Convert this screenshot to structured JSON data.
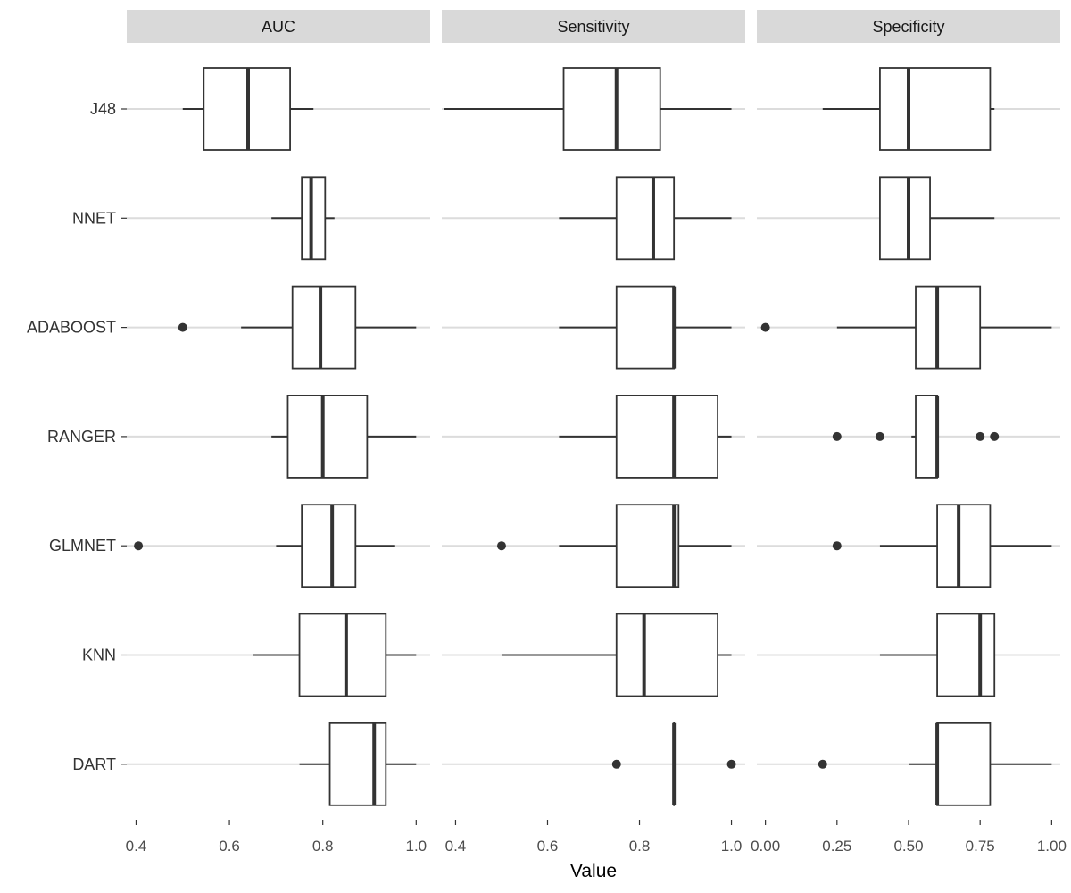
{
  "chart_data": {
    "type": "boxplot",
    "orientation": "horizontal",
    "xlabel": "Value",
    "ylabel": "",
    "colors": {
      "panel_bg": "#ffffff",
      "strip_bg": "#d9d9d9",
      "gridline": "#dcdcdc",
      "box_line": "#333333",
      "outlier": "#333333"
    },
    "models": [
      "J48",
      "NNET",
      "ADABOOST",
      "RANGER",
      "GLMNET",
      "KNN",
      "DART"
    ],
    "panels": [
      {
        "name": "AUC",
        "xlim": [
          0.38,
          1.03
        ],
        "ticks": [
          0.4,
          0.6,
          0.8,
          1.0
        ],
        "tick_labels": [
          "0.4",
          "0.6",
          "0.8",
          "1.0"
        ],
        "boxes": [
          {
            "model": "J48",
            "whisker_low": 0.5,
            "q1": 0.545,
            "median": 0.64,
            "q3": 0.73,
            "whisker_high": 0.78,
            "outliers": []
          },
          {
            "model": "NNET",
            "whisker_low": 0.69,
            "q1": 0.755,
            "median": 0.775,
            "q3": 0.805,
            "whisker_high": 0.825,
            "outliers": []
          },
          {
            "model": "ADABOOST",
            "whisker_low": 0.625,
            "q1": 0.735,
            "median": 0.795,
            "q3": 0.87,
            "whisker_high": 1.0,
            "outliers": [
              0.5
            ]
          },
          {
            "model": "RANGER",
            "whisker_low": 0.69,
            "q1": 0.725,
            "median": 0.8,
            "q3": 0.895,
            "whisker_high": 1.0,
            "outliers": []
          },
          {
            "model": "GLMNET",
            "whisker_low": 0.7,
            "q1": 0.755,
            "median": 0.82,
            "q3": 0.87,
            "whisker_high": 0.955,
            "outliers": [
              0.405
            ]
          },
          {
            "model": "KNN",
            "whisker_low": 0.65,
            "q1": 0.75,
            "median": 0.85,
            "q3": 0.935,
            "whisker_high": 1.0,
            "outliers": []
          },
          {
            "model": "DART",
            "whisker_low": 0.75,
            "q1": 0.815,
            "median": 0.91,
            "q3": 0.935,
            "whisker_high": 1.0,
            "outliers": []
          }
        ]
      },
      {
        "name": "Sensitivity",
        "xlim": [
          0.37,
          1.03
        ],
        "ticks": [
          0.4,
          0.6,
          0.8,
          1.0
        ],
        "tick_labels": [
          "0.4",
          "0.6",
          "0.8",
          "1.0"
        ],
        "boxes": [
          {
            "model": "J48",
            "whisker_low": 0.375,
            "q1": 0.635,
            "median": 0.75,
            "q3": 0.845,
            "whisker_high": 1.0,
            "outliers": []
          },
          {
            "model": "NNET",
            "whisker_low": 0.625,
            "q1": 0.75,
            "median": 0.83,
            "q3": 0.875,
            "whisker_high": 1.0,
            "outliers": []
          },
          {
            "model": "ADABOOST",
            "whisker_low": 0.625,
            "q1": 0.75,
            "median": 0.875,
            "q3": 0.875,
            "whisker_high": 1.0,
            "outliers": []
          },
          {
            "model": "RANGER",
            "whisker_low": 0.625,
            "q1": 0.75,
            "median": 0.875,
            "q3": 0.97,
            "whisker_high": 1.0,
            "outliers": []
          },
          {
            "model": "GLMNET",
            "whisker_low": 0.625,
            "q1": 0.75,
            "median": 0.875,
            "q3": 0.885,
            "whisker_high": 1.0,
            "outliers": [
              0.5
            ]
          },
          {
            "model": "KNN",
            "whisker_low": 0.5,
            "q1": 0.75,
            "median": 0.81,
            "q3": 0.97,
            "whisker_high": 1.0,
            "outliers": []
          },
          {
            "model": "DART",
            "whisker_low": 0.875,
            "q1": 0.875,
            "median": 0.875,
            "q3": 0.875,
            "whisker_high": 0.875,
            "outliers": [
              0.75,
              1.0
            ]
          }
        ]
      },
      {
        "name": "Specificity",
        "xlim": [
          -0.03,
          1.03
        ],
        "ticks": [
          0.0,
          0.25,
          0.5,
          0.75,
          1.0
        ],
        "tick_labels": [
          "0.00",
          "0.25",
          "0.50",
          "0.75",
          "1.00"
        ],
        "boxes": [
          {
            "model": "J48",
            "whisker_low": 0.2,
            "q1": 0.4,
            "median": 0.5,
            "q3": 0.785,
            "whisker_high": 0.8,
            "outliers": []
          },
          {
            "model": "NNET",
            "whisker_low": 0.4,
            "q1": 0.4,
            "median": 0.5,
            "q3": 0.575,
            "whisker_high": 0.8,
            "outliers": []
          },
          {
            "model": "ADABOOST",
            "whisker_low": 0.25,
            "q1": 0.525,
            "median": 0.6,
            "q3": 0.75,
            "whisker_high": 1.0,
            "outliers": [
              0.0
            ]
          },
          {
            "model": "RANGER",
            "whisker_low": 0.51,
            "q1": 0.525,
            "median": 0.6,
            "q3": 0.6,
            "whisker_high": 0.6,
            "outliers": [
              0.25,
              0.4,
              0.75,
              0.8
            ]
          },
          {
            "model": "GLMNET",
            "whisker_low": 0.4,
            "q1": 0.6,
            "median": 0.675,
            "q3": 0.785,
            "whisker_high": 1.0,
            "outliers": [
              0.25
            ]
          },
          {
            "model": "KNN",
            "whisker_low": 0.4,
            "q1": 0.6,
            "median": 0.75,
            "q3": 0.8,
            "whisker_high": 0.8,
            "outliers": []
          },
          {
            "model": "DART",
            "whisker_low": 0.5,
            "q1": 0.6,
            "median": 0.6,
            "q3": 0.785,
            "whisker_high": 1.0,
            "outliers": [
              0.2
            ]
          }
        ]
      }
    ]
  }
}
